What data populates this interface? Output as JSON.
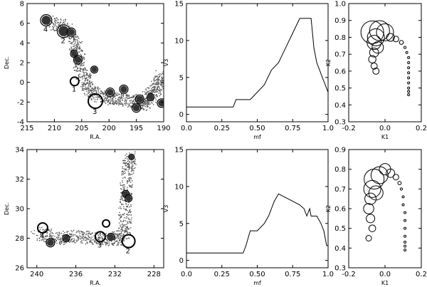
{
  "chart_data": [
    {
      "type": "scatter",
      "position": "top-left",
      "xlabel": "R.A.",
      "ylabel": "Dec.",
      "xlim": [
        215,
        190
      ],
      "ylim": [
        -4,
        8
      ],
      "xticks": [
        215,
        210,
        205,
        200,
        195,
        190
      ],
      "yticks": [
        -4,
        -2,
        0,
        2,
        4,
        6,
        8
      ],
      "field_band": [
        [
          211,
          6.2
        ],
        [
          208,
          5.6
        ],
        [
          206,
          3.5
        ],
        [
          205.2,
          1.4
        ],
        [
          204,
          -0.4
        ],
        [
          202,
          -1.4
        ],
        [
          199,
          -1.6
        ],
        [
          196,
          -1.8
        ],
        [
          194,
          -2.2
        ],
        [
          192.5,
          -1.3
        ],
        [
          191,
          -0.3
        ],
        [
          190.3,
          0.8
        ]
      ],
      "groups": [
        {
          "ra": 211.5,
          "dec": 6.3,
          "size": 3,
          "filled": true,
          "label": "4"
        },
        {
          "ra": 208.3,
          "dec": 5.2,
          "size": 3.5,
          "filled": true,
          "label": "2"
        },
        {
          "ra": 206.9,
          "dec": 5.1,
          "size": 2,
          "filled": true,
          "label": ""
        },
        {
          "ra": 206.4,
          "dec": 2.9,
          "size": 1.5,
          "filled": true,
          "label": ""
        },
        {
          "ra": 205.7,
          "dec": 2.3,
          "size": 2,
          "filled": true,
          "label": ""
        },
        {
          "ra": 206.3,
          "dec": 0.1,
          "size": 2,
          "filled": false,
          "label": "1"
        },
        {
          "ra": 202.7,
          "dec": 1.3,
          "size": 1.5,
          "filled": true,
          "label": ""
        },
        {
          "ra": 202.5,
          "dec": -1.9,
          "size": 4,
          "filled": false,
          "label": "3"
        },
        {
          "ra": 199.8,
          "dec": -1.0,
          "size": 2,
          "filled": true,
          "label": ""
        },
        {
          "ra": 197.3,
          "dec": -0.7,
          "size": 2,
          "filled": true,
          "label": ""
        },
        {
          "ra": 195.0,
          "dec": -2.6,
          "size": 2,
          "filled": true,
          "label": ""
        },
        {
          "ra": 194.4,
          "dec": -1.7,
          "size": 2,
          "filled": true,
          "label": ""
        },
        {
          "ra": 192.4,
          "dec": -1.5,
          "size": 1.5,
          "filled": true,
          "label": ""
        },
        {
          "ra": 190.4,
          "dec": -2.1,
          "size": 2,
          "filled": true,
          "label": ""
        }
      ]
    },
    {
      "type": "line",
      "position": "top-middle",
      "xlabel": "mf",
      "ylabel": "V3",
      "xlim": [
        0,
        1
      ],
      "ylim": [
        -1,
        15
      ],
      "xticks": [
        0.0,
        0.25,
        0.5,
        0.75,
        1.0
      ],
      "xticklabels": [
        "0.0",
        "0.25",
        "0.50",
        "0.75",
        "1.0"
      ],
      "yticks": [
        0,
        5,
        10,
        15
      ],
      "x": [
        0,
        0.05,
        0.1,
        0.15,
        0.2,
        0.25,
        0.3,
        0.33,
        0.35,
        0.4,
        0.45,
        0.5,
        0.55,
        0.6,
        0.65,
        0.7,
        0.75,
        0.8,
        0.85,
        0.88,
        0.9,
        0.92,
        0.94,
        0.96,
        0.98,
        1.0
      ],
      "y": [
        1,
        1,
        1,
        1,
        1,
        1,
        1,
        1,
        2,
        2,
        2,
        3,
        4,
        6,
        7,
        9,
        11,
        13,
        13,
        13,
        9,
        7,
        6,
        5,
        4,
        3
      ]
    },
    {
      "type": "scatter",
      "position": "top-right",
      "xlabel": "K1",
      "ylabel": "K2",
      "xlim": [
        -0.2,
        0.2
      ],
      "ylim": [
        0.3,
        1.0
      ],
      "xticks": [
        -0.2,
        0.0,
        0.2
      ],
      "yticks": [
        0.3,
        0.4,
        0.5,
        0.6,
        0.7,
        0.8,
        0.9,
        1.0
      ],
      "points": [
        {
          "k1": -0.07,
          "k2": 0.83,
          "r": 4
        },
        {
          "k1": -0.03,
          "k2": 0.84,
          "r": 3.5
        },
        {
          "k1": 0.0,
          "k2": 0.83,
          "r": 3
        },
        {
          "k1": -0.05,
          "k2": 0.8,
          "r": 3
        },
        {
          "k1": -0.06,
          "k2": 0.77,
          "r": 2.5
        },
        {
          "k1": -0.04,
          "k2": 0.74,
          "r": 2
        },
        {
          "k1": -0.06,
          "k2": 0.71,
          "r": 1.6
        },
        {
          "k1": -0.07,
          "k2": 0.67,
          "r": 1.3
        },
        {
          "k1": -0.06,
          "k2": 0.63,
          "r": 1.1
        },
        {
          "k1": -0.05,
          "k2": 0.6,
          "r": 1.1
        },
        {
          "k1": 0.03,
          "k2": 0.8,
          "r": 1.4
        },
        {
          "k1": 0.06,
          "k2": 0.79,
          "r": 1.0
        },
        {
          "k1": 0.09,
          "k2": 0.77,
          "r": 0.7
        },
        {
          "k1": 0.11,
          "k2": 0.74,
          "r": 0.4
        },
        {
          "k1": 0.12,
          "k2": 0.71,
          "r": 0.3
        },
        {
          "k1": 0.13,
          "k2": 0.68,
          "r": 0.2
        },
        {
          "k1": 0.13,
          "k2": 0.65,
          "r": 0.2
        },
        {
          "k1": 0.13,
          "k2": 0.62,
          "r": 0.2
        },
        {
          "k1": 0.13,
          "k2": 0.59,
          "r": 0.15
        },
        {
          "k1": 0.13,
          "k2": 0.56,
          "r": 0.15
        },
        {
          "k1": 0.13,
          "k2": 0.53,
          "r": 0.15
        },
        {
          "k1": 0.13,
          "k2": 0.5,
          "r": 0.15
        },
        {
          "k1": 0.13,
          "k2": 0.48,
          "r": 0.15
        },
        {
          "k1": 0.13,
          "k2": 0.46,
          "r": 0.15
        }
      ]
    },
    {
      "type": "scatter",
      "position": "bottom-left",
      "xlabel": "R.A.",
      "ylabel": "Dec.",
      "xlim": [
        241,
        227
      ],
      "ylim": [
        26,
        34
      ],
      "xticks": [
        240,
        236,
        232,
        228
      ],
      "yticks": [
        26,
        28,
        30,
        32,
        34
      ],
      "field_band": [
        [
          240,
          28.4
        ],
        [
          238,
          28.0
        ],
        [
          236,
          28.2
        ],
        [
          234,
          28.0
        ],
        [
          232,
          27.9
        ],
        [
          231,
          28.5
        ],
        [
          231,
          30.5
        ],
        [
          230.8,
          32.5
        ],
        [
          230.4,
          33.6
        ]
      ],
      "groups": [
        {
          "ra": 239.4,
          "dec": 28.7,
          "size": 2.5,
          "filled": false,
          "label": "4"
        },
        {
          "ra": 238.6,
          "dec": 27.7,
          "size": 2,
          "filled": true,
          "label": ""
        },
        {
          "ra": 237.0,
          "dec": 28.0,
          "size": 1.5,
          "filled": true,
          "label": ""
        },
        {
          "ra": 233.5,
          "dec": 28.1,
          "size": 2.5,
          "filled": false,
          "label": "3"
        },
        {
          "ra": 232.9,
          "dec": 29.0,
          "size": 1.5,
          "filled": false,
          "label": ""
        },
        {
          "ra": 232.4,
          "dec": 28.1,
          "size": 1.5,
          "filled": true,
          "label": ""
        },
        {
          "ra": 230.9,
          "dec": 31.0,
          "size": 1.5,
          "filled": true,
          "label": ""
        },
        {
          "ra": 230.6,
          "dec": 30.7,
          "size": 1.5,
          "filled": true,
          "label": ""
        },
        {
          "ra": 230.3,
          "dec": 33.5,
          "size": 1,
          "filled": true,
          "label": ""
        },
        {
          "ra": 230.6,
          "dec": 27.8,
          "size": 3.5,
          "filled": false,
          "label": "2"
        }
      ]
    },
    {
      "type": "line",
      "position": "bottom-middle",
      "xlabel": "mf",
      "ylabel": "V3",
      "xlim": [
        0,
        1
      ],
      "ylim": [
        -1,
        15
      ],
      "xticks": [
        0.0,
        0.25,
        0.5,
        0.75,
        1.0
      ],
      "xticklabels": [
        "0.0",
        "0.25",
        "0.50",
        "0.75",
        "1.0"
      ],
      "yticks": [
        0,
        5,
        10,
        15
      ],
      "x": [
        0,
        0.05,
        0.1,
        0.15,
        0.2,
        0.25,
        0.3,
        0.35,
        0.4,
        0.42,
        0.45,
        0.5,
        0.55,
        0.58,
        0.62,
        0.65,
        0.7,
        0.75,
        0.8,
        0.83,
        0.85,
        0.87,
        0.88,
        0.9,
        0.92,
        0.95,
        0.97,
        0.99,
        1.0
      ],
      "y": [
        1,
        1,
        1,
        1,
        1,
        1,
        1,
        1,
        1,
        2,
        4,
        4,
        5,
        6,
        8,
        9,
        8.5,
        8,
        7.5,
        7,
        6,
        7,
        6,
        6,
        6,
        5,
        4,
        2,
        2
      ]
    },
    {
      "type": "scatter",
      "position": "bottom-right",
      "xlabel": "K1",
      "ylabel": "K2",
      "xlim": [
        -0.2,
        0.2
      ],
      "ylim": [
        0.3,
        0.9
      ],
      "xticks": [
        -0.2,
        0.0,
        0.2
      ],
      "yticks": [
        0.3,
        0.4,
        0.5,
        0.6,
        0.7,
        0.8,
        0.9
      ],
      "points": [
        {
          "k1": -0.06,
          "k2": 0.75,
          "r": 3.5
        },
        {
          "k1": -0.03,
          "k2": 0.77,
          "r": 3
        },
        {
          "k1": -0.07,
          "k2": 0.7,
          "r": 3
        },
        {
          "k1": -0.05,
          "k2": 0.68,
          "r": 2.5
        },
        {
          "k1": -0.08,
          "k2": 0.65,
          "r": 2
        },
        {
          "k1": -0.09,
          "k2": 0.6,
          "r": 1.8
        },
        {
          "k1": -0.08,
          "k2": 0.55,
          "r": 1.5
        },
        {
          "k1": -0.07,
          "k2": 0.5,
          "r": 1.2
        },
        {
          "k1": -0.09,
          "k2": 0.45,
          "r": 1.0
        },
        {
          "k1": 0.0,
          "k2": 0.8,
          "r": 2
        },
        {
          "k1": 0.03,
          "k2": 0.78,
          "r": 1.5
        },
        {
          "k1": 0.06,
          "k2": 0.76,
          "r": 1.0
        },
        {
          "k1": 0.08,
          "k2": 0.73,
          "r": 0.6
        },
        {
          "k1": 0.09,
          "k2": 0.7,
          "r": 0.4
        },
        {
          "k1": 0.1,
          "k2": 0.66,
          "r": 0.3
        },
        {
          "k1": 0.1,
          "k2": 0.62,
          "r": 0.2
        },
        {
          "k1": 0.11,
          "k2": 0.58,
          "r": 0.2
        },
        {
          "k1": 0.11,
          "k2": 0.54,
          "r": 0.15
        },
        {
          "k1": 0.11,
          "k2": 0.5,
          "r": 0.15
        },
        {
          "k1": 0.11,
          "k2": 0.46,
          "r": 0.15
        },
        {
          "k1": 0.11,
          "k2": 0.43,
          "r": 0.15
        },
        {
          "k1": 0.11,
          "k2": 0.41,
          "r": 0.15
        },
        {
          "k1": 0.11,
          "k2": 0.39,
          "r": 0.15
        }
      ]
    }
  ]
}
